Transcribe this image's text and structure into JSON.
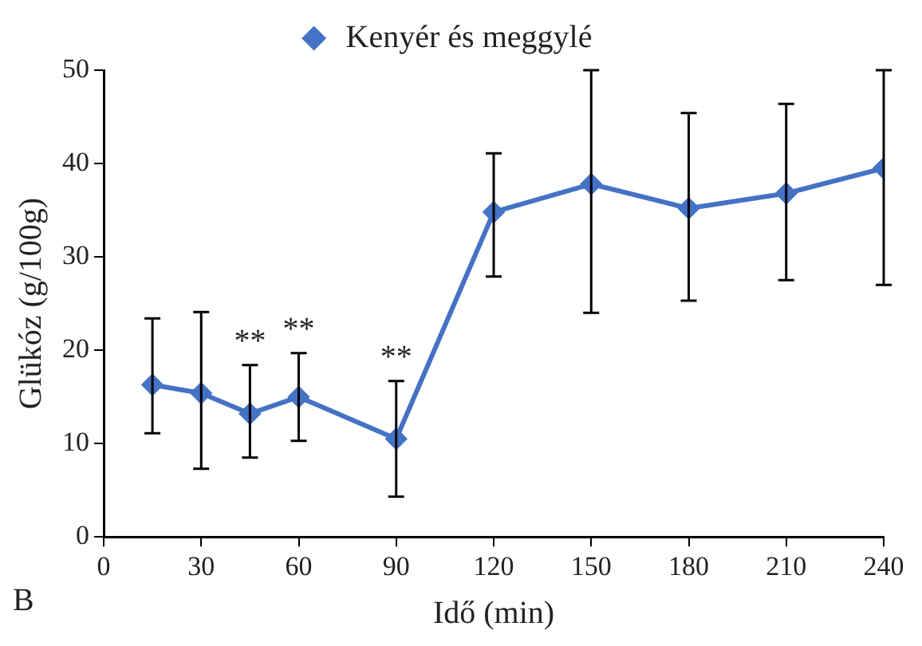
{
  "chart_data": {
    "type": "line",
    "xlabel": "Idő (min)",
    "ylabel": "Glükóz (g/100g)",
    "x": [
      15,
      30,
      45,
      60,
      90,
      120,
      150,
      180,
      210,
      240
    ],
    "series": [
      {
        "name": "Kenyér és meggylé",
        "color": "#4472c4",
        "values": [
          16.3,
          15.4,
          13.2,
          15.0,
          10.5,
          34.8,
          37.8,
          35.2,
          36.8,
          39.5
        ],
        "errors": [
          [
            11.1,
            23.4
          ],
          [
            7.3,
            24.1
          ],
          [
            8.5,
            18.4
          ],
          [
            10.3,
            19.7
          ],
          [
            4.3,
            16.7
          ],
          [
            27.9,
            41.1
          ],
          [
            24.0,
            50
          ],
          [
            25.3,
            45.4
          ],
          [
            27.5,
            46.4
          ],
          [
            27.0,
            50
          ]
        ]
      }
    ],
    "xlim": [
      0,
      240
    ],
    "xticks": [
      0,
      30,
      60,
      90,
      120,
      150,
      180,
      210,
      240
    ],
    "ylim": [
      0,
      50
    ],
    "yticks": [
      0,
      10,
      20,
      30,
      40,
      50
    ],
    "marker": "diamond",
    "legend": "top",
    "annotations": [
      {
        "text": "**",
        "x": 45,
        "y": 18.4
      },
      {
        "text": "**",
        "x": 60,
        "y": 19.7
      },
      {
        "text": "**",
        "x": 90,
        "y": 16.7
      },
      "B"
    ]
  }
}
